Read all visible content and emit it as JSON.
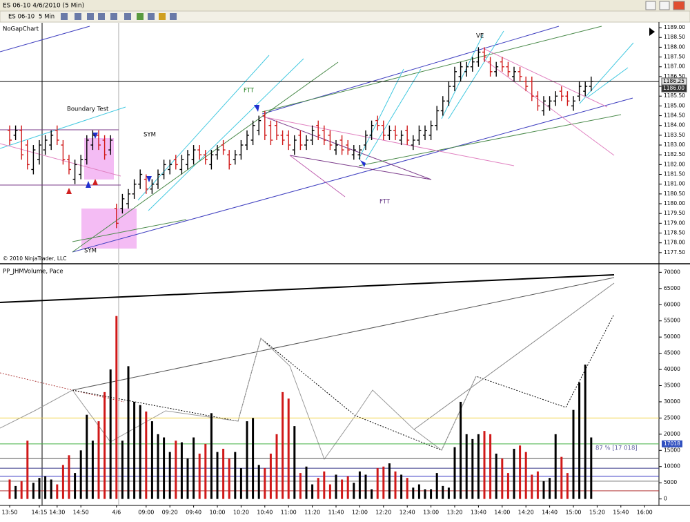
{
  "window": {
    "title": "ES 06-10  4/6/2010 (5 Min)",
    "instrument": "ES 06-10",
    "interval": "5 Min"
  },
  "chart_data": [
    {
      "type": "ohlc",
      "title": "NoGapChart",
      "copyright": "© 2010 NinjaTrader, LLC",
      "annotations": [
        "Boundary Test",
        "SYM",
        "SYM",
        "FTT",
        "FTT",
        "VE"
      ],
      "up_color": "#000000",
      "down_color": "#d01818",
      "open": [
        1183.75,
        1183.5,
        1183.75,
        1183,
        1181.75,
        1182.25,
        1182.75,
        1183,
        1183.75,
        1183,
        1182.25,
        1181.25,
        1181.5,
        1182.25,
        1183,
        1183.5,
        1183.25,
        1182.75,
        1179.75,
        1179.75,
        1180,
        1180.5,
        1181,
        1181.25,
        1180.75,
        1181,
        1181.5,
        1181.75,
        1182.25,
        1181.75,
        1182,
        1182.25,
        1182.75,
        1182.5,
        1182,
        1182.5,
        1183,
        1182.5,
        1182.25,
        1182.5,
        1183,
        1183.25,
        1183.75,
        1184.5,
        1184,
        1184,
        1183.5,
        1183.5,
        1182.75,
        1183.5,
        1183,
        1183.25,
        1184,
        1183.75,
        1183.5,
        1182.75,
        1183.25,
        1183,
        1182.5,
        1182.5,
        1183,
        1183.5,
        1184.25,
        1184,
        1183.5,
        1183.75,
        1183.25,
        1183.75,
        1183,
        1183.25,
        1183.5,
        1183.5,
        1184,
        1184.75,
        1185.25,
        1186,
        1186.5,
        1186.75,
        1187,
        1187.25,
        1187.75,
        1187.25,
        1186.75,
        1187.25,
        1187,
        1186.5,
        1186.75,
        1186.25,
        1186.25,
        1185.5,
        1184.75,
        1185,
        1185.25,
        1185.75,
        1185.5,
        1185,
        1185.5,
        1185.75,
        1186
      ],
      "high": [
        1184,
        1184,
        1184,
        1183.25,
        1183,
        1183.25,
        1183.5,
        1183.75,
        1184,
        1183.25,
        1182.5,
        1182.25,
        1182.5,
        1183.5,
        1183.75,
        1183.75,
        1183.5,
        1183.5,
        1180,
        1180.5,
        1180.75,
        1181.25,
        1181.75,
        1181.5,
        1181.25,
        1181.75,
        1182.25,
        1182.25,
        1182.5,
        1182.5,
        1182.75,
        1183,
        1183,
        1182.75,
        1182.75,
        1183,
        1183.25,
        1182.75,
        1182.75,
        1183.25,
        1183.75,
        1184.25,
        1184.5,
        1184.75,
        1184.25,
        1184.25,
        1183.75,
        1183.75,
        1183.5,
        1183.75,
        1183.5,
        1184,
        1184.25,
        1184,
        1183.75,
        1183.25,
        1183.5,
        1183.25,
        1183,
        1183,
        1183.75,
        1184.25,
        1184.5,
        1184.25,
        1184,
        1184,
        1183.75,
        1184,
        1183.5,
        1184,
        1184,
        1184.25,
        1185,
        1185.5,
        1186.25,
        1187,
        1187.25,
        1187.25,
        1187.5,
        1188,
        1188,
        1187.5,
        1187.25,
        1187.5,
        1187.25,
        1187,
        1187,
        1186.5,
        1186.5,
        1185.75,
        1185.5,
        1185.5,
        1185.75,
        1186,
        1185.75,
        1185.5,
        1186.25,
        1186.25,
        1186.5
      ],
      "low": [
        1183,
        1183.25,
        1182.25,
        1181.75,
        1181.5,
        1182,
        1182.5,
        1182.75,
        1183,
        1182,
        1181.5,
        1181,
        1181.25,
        1182,
        1182.75,
        1182.75,
        1182.25,
        1182.5,
        1178.75,
        1179.5,
        1179.75,
        1180.25,
        1180.75,
        1180.5,
        1180.5,
        1180.75,
        1181.25,
        1181.5,
        1181.75,
        1181.5,
        1181.75,
        1182,
        1182.25,
        1182,
        1181.75,
        1182.25,
        1182.5,
        1181.75,
        1182,
        1182.25,
        1182.75,
        1183,
        1183.5,
        1183.25,
        1183,
        1183.25,
        1183,
        1182.75,
        1182.5,
        1182.75,
        1182.75,
        1183,
        1183.25,
        1183,
        1182.75,
        1182.5,
        1182.5,
        1182.5,
        1182.25,
        1182.25,
        1182.75,
        1183.25,
        1183.75,
        1183.25,
        1183.25,
        1183.25,
        1183,
        1183,
        1182.75,
        1183,
        1183.25,
        1183.25,
        1183.75,
        1184.5,
        1185,
        1185.75,
        1186.25,
        1186.5,
        1186.75,
        1187,
        1187.25,
        1186.5,
        1186.5,
        1186.75,
        1186.5,
        1186.25,
        1186.25,
        1185.75,
        1185.25,
        1184.75,
        1184.5,
        1184.75,
        1185,
        1185.25,
        1185,
        1184.75,
        1185.25,
        1185.5,
        1185.75
      ],
      "close": [
        1183.25,
        1183.75,
        1182.5,
        1182,
        1182.75,
        1183,
        1183.25,
        1183.5,
        1183.25,
        1182.25,
        1181.75,
        1182,
        1182.25,
        1183.25,
        1183.5,
        1183,
        1182.5,
        1183.25,
        1179,
        1180.25,
        1180.5,
        1181,
        1181.5,
        1180.75,
        1181,
        1181.5,
        1182,
        1182,
        1182,
        1182.25,
        1182.5,
        1182.75,
        1182.5,
        1182.25,
        1182.5,
        1182.75,
        1182.75,
        1182,
        1182.5,
        1183,
        1183.5,
        1184,
        1184.25,
        1183.5,
        1183.25,
        1183.5,
        1183.25,
        1183,
        1183.25,
        1183,
        1183.25,
        1183.75,
        1183.5,
        1183.25,
        1183,
        1183,
        1182.75,
        1182.75,
        1182.75,
        1182.75,
        1183.5,
        1184,
        1184,
        1183.5,
        1183.75,
        1183.5,
        1183.5,
        1183.25,
        1183.25,
        1183.75,
        1183.75,
        1184,
        1184.75,
        1185.25,
        1186,
        1186.75,
        1187,
        1187,
        1187.25,
        1187.75,
        1187.5,
        1186.75,
        1187,
        1187,
        1186.75,
        1186.75,
        1186.5,
        1186,
        1185.5,
        1185,
        1185.25,
        1185.25,
        1185.5,
        1185.5,
        1185.25,
        1185.25,
        1186,
        1186,
        1186.25
      ],
      "ylim": [
        1177,
        1189.25
      ],
      "yticks": [
        {
          "value": 1177.5,
          "label": "1177.50"
        },
        {
          "value": 1178,
          "label": "1178.00"
        },
        {
          "value": 1178.5,
          "label": "1178.50"
        },
        {
          "value": 1179,
          "label": "1179.00"
        },
        {
          "value": 1179.5,
          "label": "1179.50"
        },
        {
          "value": 1180,
          "label": "1180.00"
        },
        {
          "value": 1180.5,
          "label": "1180.50"
        },
        {
          "value": 1181,
          "label": "1181.00"
        },
        {
          "value": 1181.5,
          "label": "1181.50"
        },
        {
          "value": 1182,
          "label": "1182.00"
        },
        {
          "value": 1182.5,
          "label": "1182.50"
        },
        {
          "value": 1183,
          "label": "1183.00"
        },
        {
          "value": 1183.5,
          "label": "1183.50"
        },
        {
          "value": 1184,
          "label": "1184.00"
        },
        {
          "value": 1184.5,
          "label": "1184.50"
        },
        {
          "value": 1185,
          "label": "1185.00"
        },
        {
          "value": 1185.5,
          "label": "1185.50"
        },
        {
          "value": 1186,
          "label": "1186.00"
        },
        {
          "value": 1186.5,
          "label": "1186.50"
        },
        {
          "value": 1187,
          "label": "1187.00"
        },
        {
          "value": 1187.5,
          "label": "1187.50"
        },
        {
          "value": 1188,
          "label": "1188.00"
        },
        {
          "value": 1188.5,
          "label": "1188.50"
        },
        {
          "value": 1189,
          "label": "1189.00"
        }
      ],
      "price_markers": [
        {
          "value": 1186.25,
          "label": "1186.25"
        },
        {
          "value": 1186,
          "label": "1186.00"
        }
      ]
    },
    {
      "type": "bar",
      "title": "PP_JHMVolume, Pace",
      "categories": [
        "13:50",
        null,
        null,
        null,
        null,
        "14:15",
        null,
        null,
        "14:30",
        null,
        null,
        null,
        "14:50",
        null,
        null,
        null,
        null,
        null,
        "4/6",
        null,
        null,
        null,
        null,
        "09:00",
        null,
        null,
        null,
        "09:20",
        null,
        null,
        null,
        "09:40",
        null,
        null,
        null,
        "10:00",
        null,
        null,
        null,
        "10:20",
        null,
        null,
        null,
        "10:40",
        null,
        null,
        null,
        "11:00",
        null,
        null,
        null,
        "11:20",
        null,
        null,
        null,
        "11:40",
        null,
        null,
        null,
        "12:00",
        null,
        null,
        null,
        "12:20",
        null,
        null,
        null,
        "12:40",
        null,
        null,
        null,
        "13:00",
        null,
        null,
        null,
        "13:20",
        null,
        null,
        null,
        "13:40",
        null,
        null,
        null,
        "14:00",
        null,
        null,
        null,
        "14:20",
        null,
        null,
        null,
        "14:40",
        null,
        null,
        null,
        "15:00",
        null,
        null,
        null,
        "15:20",
        null,
        null,
        null,
        "15:40",
        null,
        null,
        null,
        "16:00"
      ],
      "values": [
        6000,
        4000,
        5500,
        18000,
        5000,
        6500,
        7000,
        6000,
        4500,
        10500,
        13500,
        8000,
        15000,
        26000,
        18000,
        24000,
        33000,
        40000,
        56500,
        18000,
        41000,
        30000,
        29000,
        27000,
        24000,
        20000,
        19000,
        14500,
        18000,
        17500,
        12500,
        19000,
        14000,
        17000,
        26500,
        14500,
        15500,
        12500,
        14500,
        9500,
        24000,
        25000,
        10500,
        9500,
        14000,
        20000,
        33000,
        31000,
        22500,
        8000,
        10000,
        4500,
        6500,
        8500,
        4500,
        7500,
        6000,
        7000,
        5000,
        8500,
        7500,
        3000,
        9500,
        10000,
        11000,
        8500,
        7500,
        6500,
        3500,
        4500,
        3000,
        3000,
        8000,
        4000,
        3500,
        16000,
        30000,
        20000,
        18500,
        20000,
        21000,
        20000,
        14000,
        12500,
        8000,
        15500,
        16500,
        14500,
        7500,
        8500,
        5500,
        6500,
        20000,
        13000,
        8000,
        27500,
        36000,
        41500,
        19000,
        null,
        null,
        null,
        null,
        null,
        null,
        null,
        null,
        null
      ],
      "ylim": [
        -2000,
        72000
      ],
      "yticks": [
        0,
        5000,
        10000,
        15000,
        20000,
        25000,
        30000,
        35000,
        40000,
        45000,
        50000,
        55000,
        60000,
        65000,
        70000
      ],
      "reference_lines": [
        {
          "value": 25000,
          "color": "#f0d040"
        },
        {
          "value": 12500,
          "color": "#505050"
        },
        {
          "value": 9500,
          "color": "#3a3a8a"
        },
        {
          "value": 7000,
          "color": "#3030c0"
        },
        {
          "value": 5500,
          "color": "#707070"
        },
        {
          "value": 2500,
          "color": "#b03030"
        }
      ],
      "pace": {
        "value": 17018,
        "label": "17018",
        "text": "87 % [17 018]",
        "color": "#40b040"
      }
    }
  ]
}
